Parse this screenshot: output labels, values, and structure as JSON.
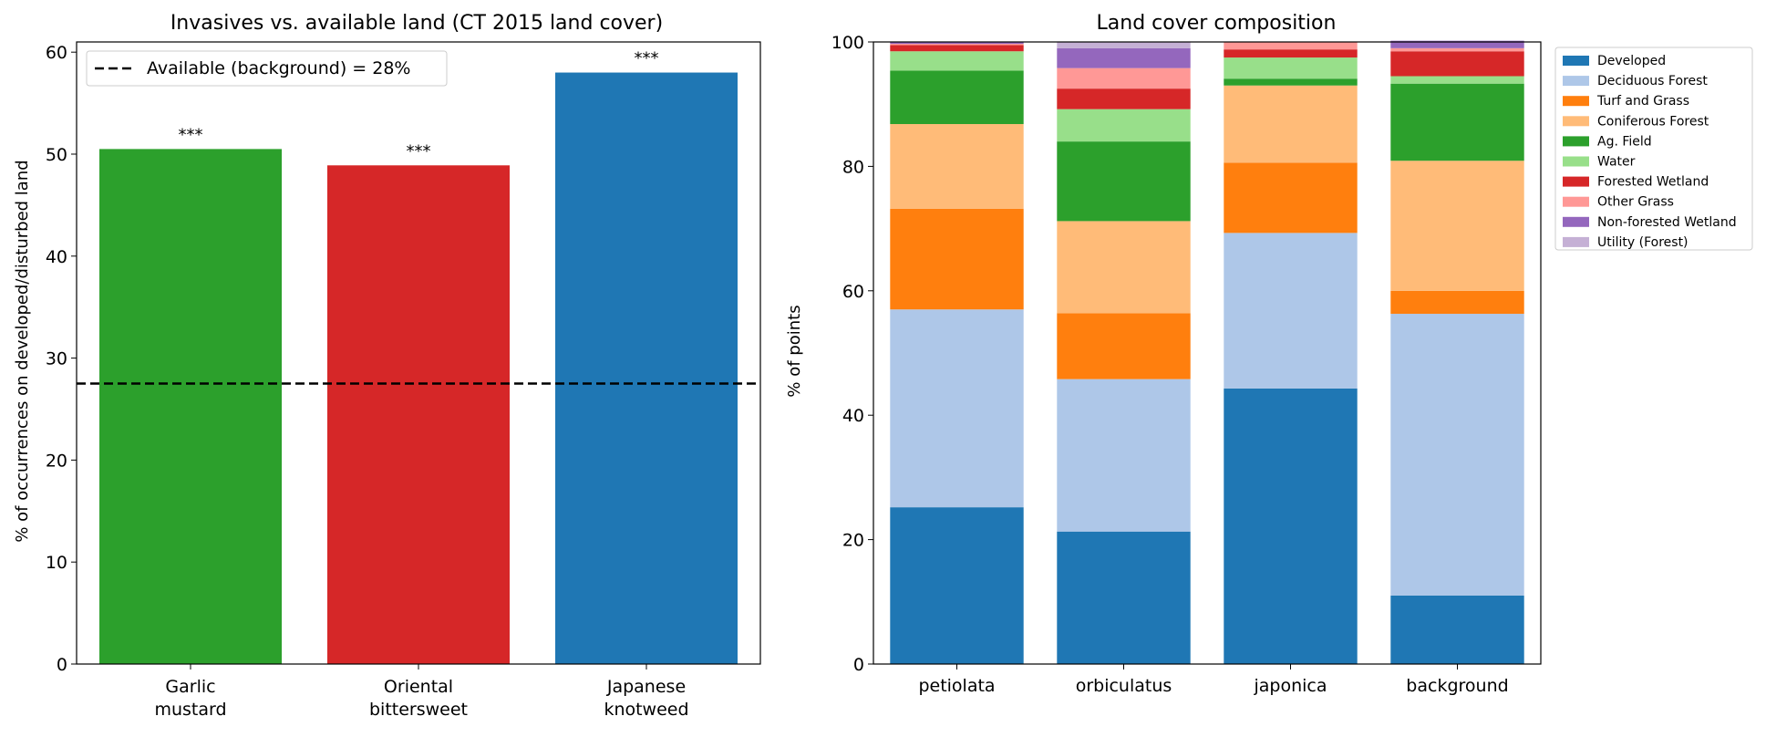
{
  "chart_data": [
    {
      "type": "bar",
      "title": "Invasives vs. available land (CT 2015 land cover)",
      "ylabel": "% of occurrences on developed/disturbed land",
      "xlabel": "",
      "ylim": [
        0,
        61
      ],
      "yticks": [
        0,
        10,
        20,
        30,
        40,
        50,
        60
      ],
      "categories": [
        [
          "Garlic",
          "mustard"
        ],
        [
          "Oriental",
          "bittersweet"
        ],
        [
          "Japanese",
          "knotweed"
        ]
      ],
      "values": [
        50.5,
        48.9,
        58.0
      ],
      "colors": [
        "#2ca02c",
        "#d62728",
        "#1f77b4"
      ],
      "annotations": [
        "***",
        "***",
        "***"
      ],
      "reference_line": {
        "value": 27.5,
        "label": "Available (background) = 28%",
        "style": "dashed"
      },
      "legend_position": "upper-left",
      "grid": false
    },
    {
      "type": "bar",
      "stacked": true,
      "title": "Land cover composition",
      "ylabel": "% of points",
      "xlabel": "",
      "ylim": [
        0,
        100
      ],
      "yticks": [
        0,
        20,
        40,
        60,
        80,
        100
      ],
      "categories": [
        "petiolata",
        "orbiculatus",
        "japonica",
        "background"
      ],
      "legend_position": "outside-right",
      "grid": false,
      "series": [
        {
          "name": "Developed",
          "color": "#1f77b4",
          "values": [
            25.2,
            21.3,
            44.3,
            11.0
          ]
        },
        {
          "name": "Deciduous Forest",
          "color": "#aec7e8",
          "values": [
            31.8,
            24.5,
            25.0,
            45.3
          ]
        },
        {
          "name": "Turf and Grass",
          "color": "#ff7f0e",
          "values": [
            16.2,
            10.6,
            11.3,
            3.7
          ]
        },
        {
          "name": "Coniferous Forest",
          "color": "#ffbb78",
          "values": [
            13.6,
            14.8,
            12.4,
            20.9
          ]
        },
        {
          "name": "Ag. Field",
          "color": "#2ca02c",
          "values": [
            8.6,
            12.8,
            1.1,
            12.4
          ]
        },
        {
          "name": "Water",
          "color": "#98df8a",
          "values": [
            3.1,
            5.2,
            3.4,
            1.2
          ]
        },
        {
          "name": "Forested Wetland",
          "color": "#d62728",
          "values": [
            1.0,
            3.3,
            1.3,
            4.0
          ]
        },
        {
          "name": "Other Grass",
          "color": "#ff9896",
          "values": [
            0.2,
            3.3,
            1.2,
            0.5
          ]
        },
        {
          "name": "Non-forested Wetland",
          "color": "#9467bd",
          "values": [
            0.3,
            3.2,
            0,
            1.2
          ]
        },
        {
          "name": "Utility (Forest)",
          "color": "#c5b0d5",
          "values": [
            0,
            1.0,
            0,
            0
          ]
        }
      ]
    }
  ]
}
